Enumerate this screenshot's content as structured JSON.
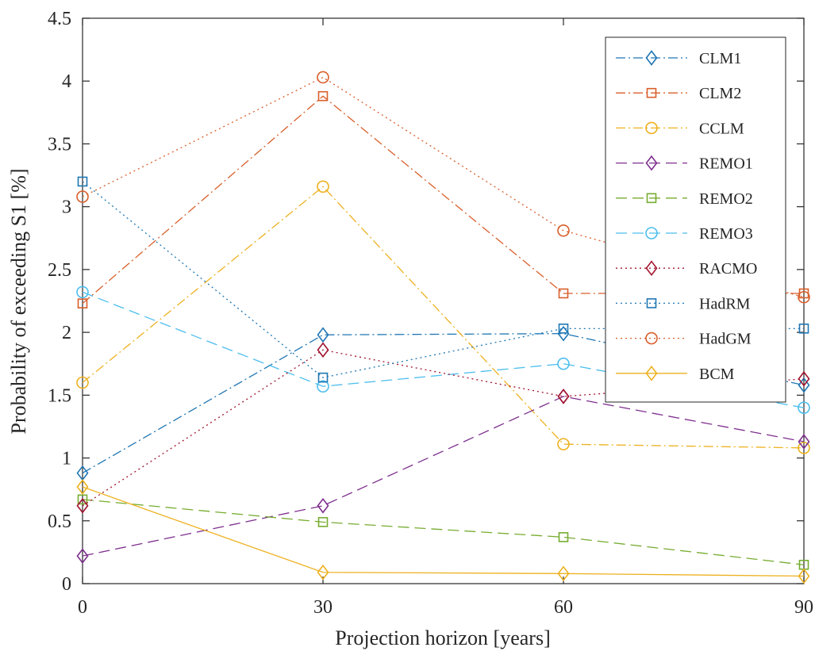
{
  "chart_data": {
    "type": "line",
    "title": "",
    "xlabel": "Projection horizon [years]",
    "ylabel": "Probability of exceeding S1 [%]",
    "x": [
      0,
      30,
      60,
      90
    ],
    "xlim": [
      0,
      90
    ],
    "ylim": [
      0,
      4.5
    ],
    "xticks": [
      "0",
      "30",
      "60",
      "90"
    ],
    "yticks": [
      "0",
      "0.5",
      "1",
      "1.5",
      "2",
      "2.5",
      "3",
      "3.5",
      "4",
      "4.5"
    ],
    "grid": false,
    "legend_position": "top-right",
    "series": [
      {
        "name": "CLM1",
        "values": [
          0.88,
          1.98,
          1.99,
          1.58
        ],
        "color": "#1f77b4",
        "dash": "12 4 2 4",
        "marker": "diamond"
      },
      {
        "name": "CLM2",
        "values": [
          2.23,
          3.88,
          2.31,
          2.31
        ],
        "color": "#d95f2b",
        "dash": "12 4 2 4",
        "marker": "square"
      },
      {
        "name": "CCLM",
        "values": [
          1.6,
          3.16,
          1.11,
          1.08
        ],
        "color": "#edb120",
        "dash": "12 4 2 4",
        "marker": "circle"
      },
      {
        "name": "REMO1",
        "values": [
          0.22,
          0.62,
          1.49,
          1.13
        ],
        "color": "#7e2f8e",
        "dash": "14 7",
        "marker": "diamond"
      },
      {
        "name": "REMO2",
        "values": [
          0.67,
          0.49,
          0.37,
          0.15
        ],
        "color": "#77ac30",
        "dash": "14 7",
        "marker": "square"
      },
      {
        "name": "REMO3",
        "values": [
          2.32,
          1.57,
          1.75,
          1.4
        ],
        "color": "#4dbeee",
        "dash": "14 7",
        "marker": "circle"
      },
      {
        "name": "RACMO",
        "values": [
          0.62,
          1.86,
          1.49,
          1.63
        ],
        "color": "#a2142f",
        "dash": "2 4",
        "marker": "diamond"
      },
      {
        "name": "HadRM",
        "values": [
          3.2,
          1.64,
          2.03,
          2.03
        ],
        "color": "#1f77b4",
        "dash": "2 4",
        "marker": "square"
      },
      {
        "name": "HadGM",
        "values": [
          3.08,
          4.03,
          2.81,
          2.28
        ],
        "color": "#d95f2b",
        "dash": "2 4",
        "marker": "circle"
      },
      {
        "name": "BCM",
        "values": [
          0.77,
          0.09,
          0.08,
          0.06
        ],
        "color": "#edb120",
        "dash": "",
        "marker": "diamond"
      }
    ]
  }
}
